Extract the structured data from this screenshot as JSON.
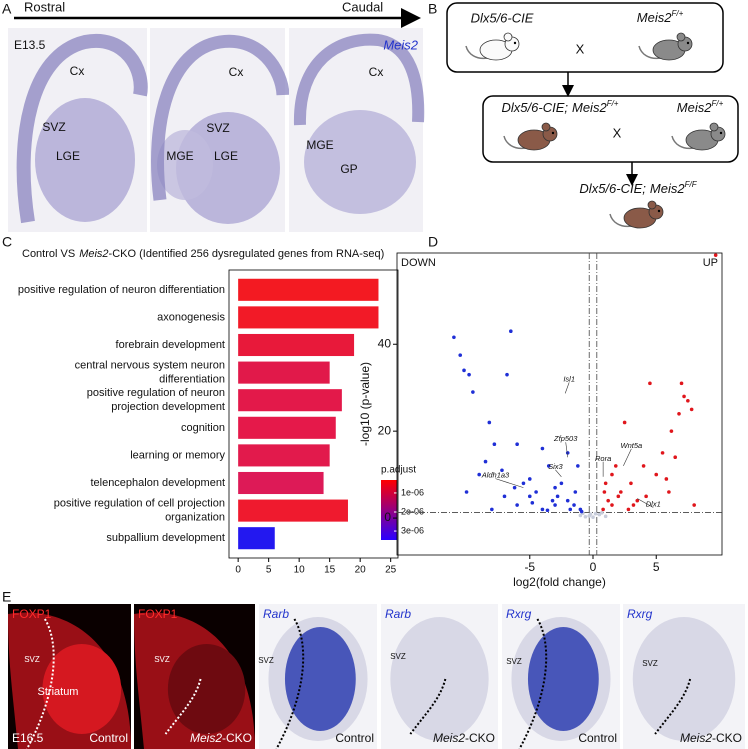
{
  "panel_labels": [
    "A",
    "B",
    "C",
    "D",
    "E"
  ],
  "panel_a": {
    "rostral": "Rostral",
    "caudal": "Caudal",
    "stage": "E13.5",
    "gene": "Meis2",
    "images": [
      {
        "labels": [
          "Cx",
          "SVZ",
          "LGE"
        ]
      },
      {
        "labels": [
          "Cx",
          "SVZ",
          "MGE",
          "LGE"
        ]
      },
      {
        "labels": [
          "Cx",
          "MGE",
          "GP"
        ]
      }
    ]
  },
  "panel_b": {
    "parent1": "Dlx5/6-CIE",
    "parent2": {
      "gene": "Meis2",
      "allele": "F/+"
    },
    "cross1": "X",
    "f1": {
      "line": "Dlx5/6-CIE;",
      "gene": "Meis2",
      "allele": "F/+"
    },
    "parent3": {
      "gene": "Meis2",
      "allele": "F/+"
    },
    "cross2": "X",
    "offspring": {
      "line": "Dlx5/6-CIE;",
      "gene": "Meis2",
      "allele": "F/F"
    }
  },
  "chart_data": [
    {
      "type": "bar",
      "orientation": "horizontal",
      "title": {
        "before": "Control  VS",
        "gene": "Meis2",
        "after": "-CKO  (Identified 256  dysregulated genes from RNA-seq)"
      },
      "categories": [
        "positive regulation of neuron differentiation",
        "axonogenesis",
        "forebrain development",
        "central nervous system neuron\ndifferentiation",
        "positive regulation of neuron\nprojection development",
        "cognition",
        "learning or memory",
        "telencephalon development",
        "positive regulation of cell projection\norganization",
        "subpallium development"
      ],
      "values": [
        23,
        23,
        19,
        15,
        17,
        16,
        15,
        14,
        18,
        6
      ],
      "colors": [
        "#f31a22",
        "#f21a27",
        "#e8193a",
        "#e1194a",
        "#e3194a",
        "#e5194a",
        "#e21a4c",
        "#dd1a57",
        "#ef1a2e",
        "#2318f0"
      ],
      "xlim": [
        -1.5,
        26.2
      ],
      "xticks": [
        0,
        5,
        10,
        15,
        20,
        25
      ],
      "colorbar": {
        "title": "p.adjust",
        "colors": [
          "#ff0000",
          "#2a00ff"
        ],
        "lim": [
          3.2e-07,
          3.47e-06
        ],
        "ticks": [
          {
            "value": 1e-06,
            "label": "1e-06"
          },
          {
            "value": 2e-06,
            "label": "2e-06"
          },
          {
            "value": 3e-06,
            "label": "3e-06"
          }
        ]
      }
    },
    {
      "type": "scatter",
      "xlabel": "log2(fold change)",
      "ylabel": "-log10 (p-value)",
      "down_label": "DOWN",
      "up_label": "UP",
      "xlim": [
        -15.5,
        10.2
      ],
      "ylim": [
        -8.5,
        61
      ],
      "xticks": [
        -5,
        0,
        5
      ],
      "yticks": [
        0,
        20,
        40
      ],
      "vlines": [
        -0.3,
        0.3
      ],
      "hline": 1.3,
      "series": [
        {
          "color": "#1f2fd6",
          "x": [
            -11,
            -10.5,
            -10.2,
            -9.8,
            -9.5,
            -8.2,
            -6.5,
            -6.8,
            -7.8,
            -6,
            -5.5,
            -4,
            -3,
            -3.5,
            -5,
            -8.5,
            -9,
            -10,
            -2,
            -1.5,
            -1,
            -6,
            -7,
            -4.5,
            -3,
            -2.5,
            -1.2,
            -2,
            -5,
            -8,
            -4,
            -3.2,
            -2.8,
            -1.8,
            -1.4,
            -0.9,
            -3.6,
            -4.8,
            -6.2,
            -7.2
          ],
          "y": [
            41.6,
            37.5,
            34,
            33,
            29,
            22,
            43,
            33,
            17,
            17,
            8,
            16,
            7,
            12,
            5,
            13,
            10,
            6,
            4,
            3,
            2,
            3,
            5,
            6,
            3,
            8,
            12,
            15,
            9,
            2,
            2,
            4,
            5,
            2,
            6,
            1.5,
            1.8,
            3.5,
            7,
            11
          ]
        },
        {
          "color": "#e0161c",
          "x": [
            9.7,
            7,
            7.5,
            6.8,
            6.2,
            5.5,
            4,
            3,
            2,
            1.5,
            4.5,
            2.5,
            1,
            1.8,
            5,
            6,
            3.5,
            7.2,
            8,
            0.8,
            1.2,
            2.2,
            3.2,
            4.2,
            5.8,
            6.5,
            7.8,
            1.5,
            2.8,
            0.9
          ],
          "y": [
            60.5,
            31,
            27,
            24,
            20,
            15,
            12,
            8,
            5,
            3,
            31,
            22,
            8,
            12,
            10,
            6,
            4,
            28,
            3,
            2,
            4,
            6,
            3,
            5,
            9,
            14,
            25,
            10,
            2,
            6
          ]
        },
        {
          "color": "#c8cddb",
          "x": [
            -0.3,
            0.2,
            -0.6,
            0.5,
            -1,
            1,
            0,
            -0.8,
            0.7,
            -0.2
          ],
          "y": [
            0.5,
            1,
            0.3,
            0.8,
            0.6,
            0.4,
            0.2,
            1.1,
            1.2,
            0.9
          ]
        }
      ],
      "labeled_points": [
        {
          "name": "Isl1",
          "x": -2.2,
          "y": 28.7
        },
        {
          "name": "Zfp503",
          "x": -2,
          "y": 14
        },
        {
          "name": "Six3",
          "x": -2.5,
          "y": 9.5
        },
        {
          "name": "Aldh1a3",
          "x": -5.5,
          "y": 7
        },
        {
          "name": "Rora",
          "x": 0.8,
          "y": 9.5
        },
        {
          "name": "Wnt5a",
          "x": 2.4,
          "y": 12
        },
        {
          "name": "Dlx1",
          "x": 3.5,
          "y": 4.5
        }
      ]
    }
  ],
  "panel_e": {
    "stage": "E16.5",
    "images": [
      {
        "gene": "FOXP1",
        "regions": [
          "SVZ",
          "Striatum"
        ],
        "condition": {
          "gene": "",
          "rest": "Control"
        }
      },
      {
        "gene": "FOXP1",
        "regions": [
          "SVZ"
        ],
        "condition": {
          "gene": "Meis2",
          "rest": "-CKO"
        }
      },
      {
        "gene": "Rarb",
        "regions": [
          "SVZ"
        ],
        "condition": {
          "gene": "",
          "rest": "Control"
        }
      },
      {
        "gene": "Rarb",
        "regions": [
          "SVZ"
        ],
        "condition": {
          "gene": "Meis2",
          "rest": "-CKO"
        }
      },
      {
        "gene": "Rxrg",
        "regions": [
          "SVZ"
        ],
        "condition": {
          "gene": "",
          "rest": "Control"
        }
      },
      {
        "gene": "Rxrg",
        "regions": [
          "SVZ"
        ],
        "condition": {
          "gene": "Meis2",
          "rest": "-CKO"
        }
      }
    ]
  }
}
